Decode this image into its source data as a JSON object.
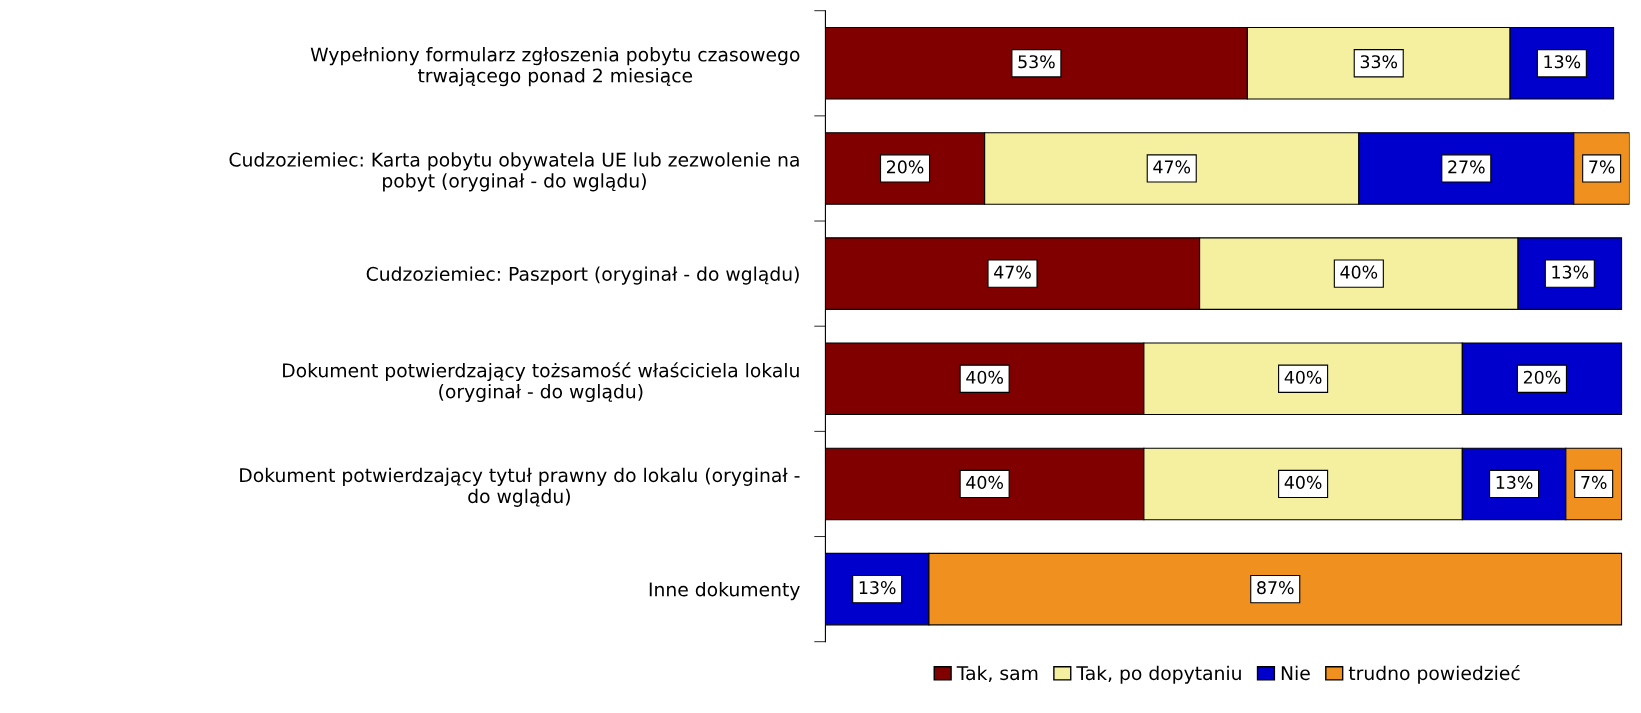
{
  "chart_data": {
    "type": "bar",
    "orientation": "horizontal",
    "stacked": true,
    "legend": "bottom",
    "categories": [
      "Wypełniony formularz zgłoszenia pobytu czasowego\ntrwającego ponad 2 miesiące",
      "Cudzoziemiec: Karta pobytu obywatela UE lub zezwolenie na\npobyt (oryginał - do wglądu)",
      "Cudzoziemiec: Paszport (oryginał - do wglądu)",
      "Dokument potwierdzający tożsamość właściciela lokalu\n(oryginał - do wglądu)",
      "Dokument potwierdzający tytuł prawny do lokalu (oryginał -\ndo wglądu)",
      "Inne dokumenty"
    ],
    "series": [
      {
        "name": "Tak, sam",
        "color": "#800000",
        "values": [
          53,
          20,
          47,
          40,
          40,
          0
        ],
        "value_labels": [
          "53%",
          "20%",
          "47%",
          "40%",
          "40%",
          null
        ]
      },
      {
        "name": "Tak, po dopytaniu",
        "color": "#f5f0a0",
        "values": [
          33,
          47,
          40,
          40,
          40,
          0
        ],
        "value_labels": [
          "33%",
          "47%",
          "40%",
          "40%",
          "40%",
          null
        ]
      },
      {
        "name": "Nie",
        "color": "#0000cc",
        "values": [
          13,
          27,
          13,
          20,
          13,
          13
        ],
        "value_labels": [
          "13%",
          "27%",
          "13%",
          "20%",
          "13%",
          "13%"
        ]
      },
      {
        "name": "trudno powiedzieć",
        "color": "#f0901e",
        "values": [
          0,
          7,
          0,
          0,
          7,
          87
        ],
        "value_labels": [
          null,
          "7%",
          null,
          null,
          "7%",
          "87%"
        ]
      }
    ]
  }
}
